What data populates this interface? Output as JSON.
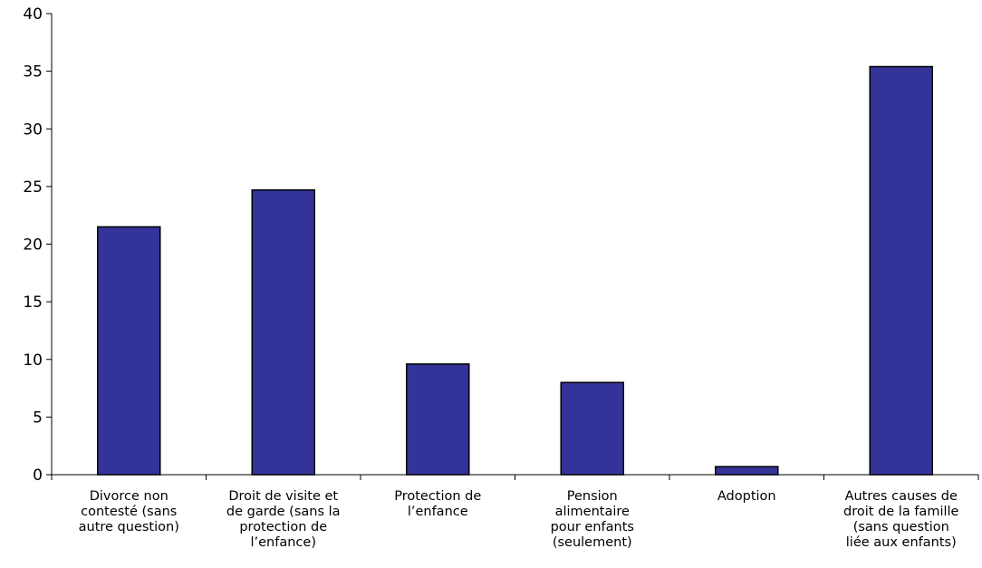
{
  "chart_data": {
    "type": "bar",
    "title": "",
    "xlabel": "",
    "ylabel": "",
    "ylim": [
      0,
      40
    ],
    "yticks": [
      0,
      5,
      10,
      15,
      20,
      25,
      30,
      35,
      40
    ],
    "grid": false,
    "bar_color": "#333399",
    "categories": [
      "Divorce non\ncontesté (sans\nautre question)",
      "Droit de visite et\nde garde (sans la\nprotection de\nl’enfance)",
      "Protection de\nl’enfance",
      "Pension\nalimentaire\npour enfants\n(seulement)",
      "Adoption",
      "Autres causes de\ndroit de la famille\n(sans question\nliée aux enfants)"
    ],
    "values": [
      21.5,
      24.7,
      9.6,
      8.0,
      0.7,
      35.4
    ]
  }
}
